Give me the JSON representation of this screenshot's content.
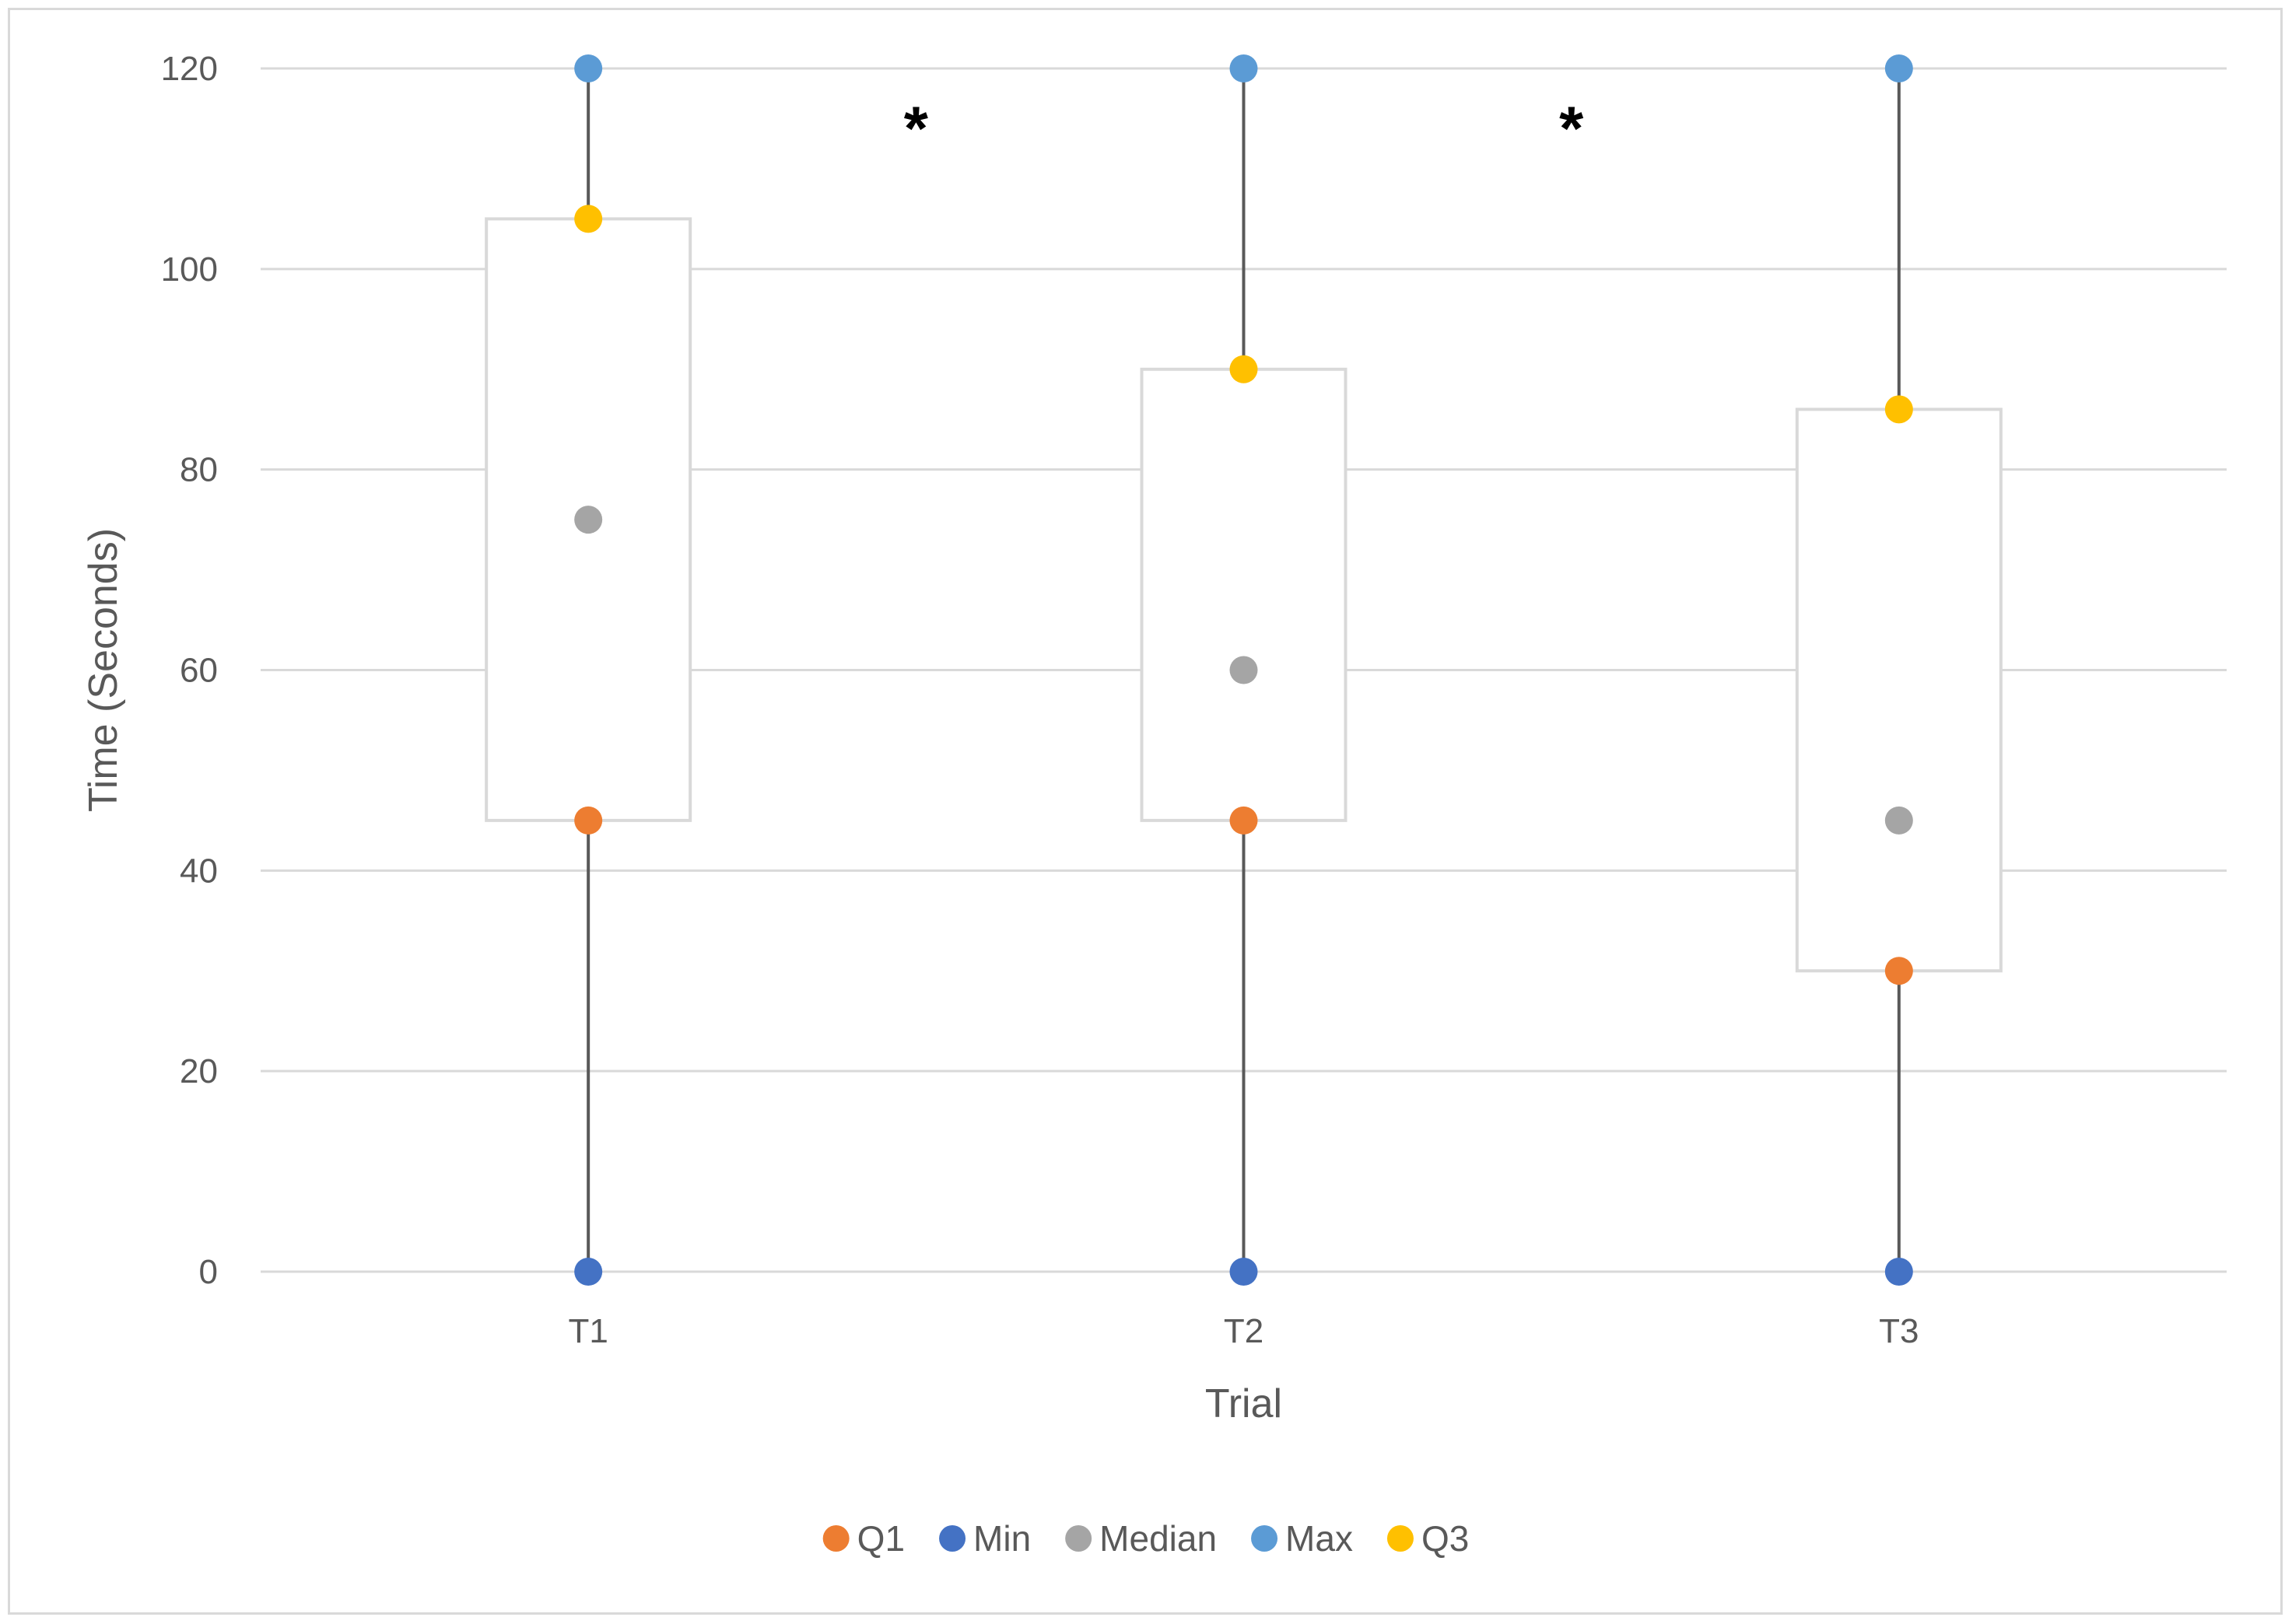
{
  "chart_data": {
    "type": "box",
    "xlabel": "Trial",
    "ylabel": "Time (Seconds)",
    "ylim": [
      0,
      120
    ],
    "yticks": [
      0,
      20,
      40,
      60,
      80,
      100,
      120
    ],
    "grid": true,
    "legend_position": "bottom",
    "categories": [
      "T1",
      "T2",
      "T3"
    ],
    "series": [
      {
        "name": "Q1",
        "color": "#ed7d31",
        "values": [
          45,
          45,
          30
        ]
      },
      {
        "name": "Min",
        "color": "#4472c4",
        "values": [
          0,
          0,
          0
        ]
      },
      {
        "name": "Median",
        "color": "#a5a5a5",
        "values": [
          75,
          60,
          45
        ]
      },
      {
        "name": "Max",
        "color": "#5b9bd5",
        "values": [
          120,
          120,
          120
        ]
      },
      {
        "name": "Q3",
        "color": "#ffc000",
        "values": [
          105,
          90,
          86
        ]
      }
    ],
    "annotations": [
      {
        "text": "*",
        "between": [
          "T1",
          "T2"
        ],
        "y": 115
      },
      {
        "text": "*",
        "between": [
          "T2",
          "T3"
        ],
        "y": 115
      }
    ]
  }
}
